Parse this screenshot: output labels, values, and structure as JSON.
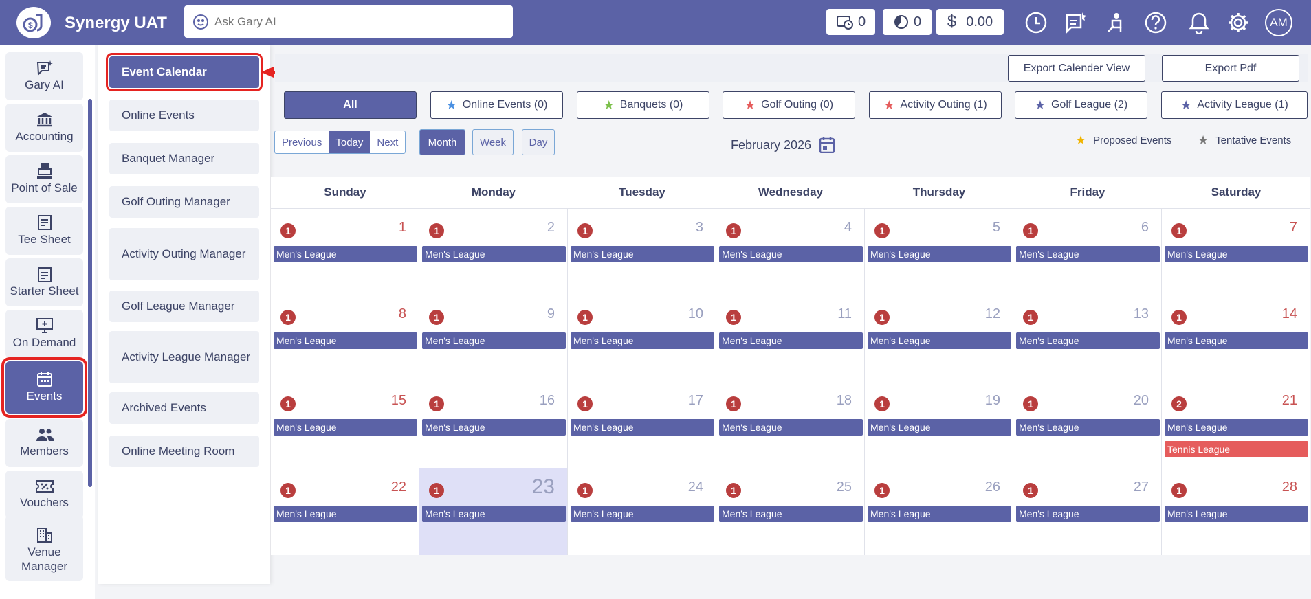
{
  "app": {
    "title": "Synergy UAT"
  },
  "search": {
    "placeholder": "Ask Gary AI"
  },
  "counters": {
    "first": "0",
    "second": "0",
    "balance": "0.00"
  },
  "user": {
    "initials": "AM"
  },
  "sidebar": {
    "items": [
      {
        "label": "Gary AI",
        "icon": "gary-ai-icon"
      },
      {
        "label": "Accounting",
        "icon": "bank-icon"
      },
      {
        "label": "Point of Sale",
        "icon": "register-icon"
      },
      {
        "label": "Tee Sheet",
        "icon": "document-icon"
      },
      {
        "label": "Starter Sheet",
        "icon": "clipboard-icon"
      },
      {
        "label": "On Demand",
        "icon": "monitor-icon"
      },
      {
        "label": "Events",
        "icon": "calendar-icon"
      },
      {
        "label": "Members",
        "icon": "people-icon"
      },
      {
        "label": "Vouchers",
        "icon": "ticket-icon"
      },
      {
        "label": "Venue Manager",
        "icon": "building-icon"
      }
    ]
  },
  "submenu": {
    "items": [
      "Event Calendar",
      "Online Events",
      "Banquet Manager",
      "Golf Outing Manager",
      "Activity Outing Manager",
      "Golf League Manager",
      "Activity League Manager",
      "Archived Events",
      "Online Meeting Room"
    ]
  },
  "toolbar": {
    "export_calendar": "Export Calender View",
    "export_pdf": "Export Pdf"
  },
  "filters": [
    {
      "label": "All",
      "star_color": ""
    },
    {
      "label": "Online Events (0)",
      "star_color": "#4a90e2"
    },
    {
      "label": "Banquets (0)",
      "star_color": "#7cc04b"
    },
    {
      "label": "Golf Outing (0)",
      "star_color": "#e55c5c"
    },
    {
      "label": "Activity Outing (1)",
      "star_color": "#e55c5c"
    },
    {
      "label": "Golf League (2)",
      "star_color": "#5b62a6"
    },
    {
      "label": "Activity League (1)",
      "star_color": "#5b62a6"
    }
  ],
  "nav": {
    "previous": "Previous",
    "today": "Today",
    "next": "Next"
  },
  "views": {
    "month": "Month",
    "week": "Week",
    "day": "Day"
  },
  "calendar": {
    "month_label": "February 2026",
    "weekdays": [
      "Sunday",
      "Monday",
      "Tuesday",
      "Wednesday",
      "Thursday",
      "Friday",
      "Saturday"
    ],
    "legend": {
      "proposed": "Proposed Events",
      "tentative": "Tentative Events",
      "proposed_color": "#f0b400",
      "tentative_color": "#777777"
    },
    "today": 23,
    "weeks": [
      [
        {
          "day": "1",
          "count": "1",
          "events": [
            "Men's League"
          ]
        },
        {
          "day": "2",
          "count": "1",
          "events": [
            "Men's League"
          ]
        },
        {
          "day": "3",
          "count": "1",
          "events": [
            "Men's League"
          ]
        },
        {
          "day": "4",
          "count": "1",
          "events": [
            "Men's League"
          ]
        },
        {
          "day": "5",
          "count": "1",
          "events": [
            "Men's League"
          ]
        },
        {
          "day": "6",
          "count": "1",
          "events": [
            "Men's League"
          ]
        },
        {
          "day": "7",
          "count": "1",
          "events": [
            "Men's League"
          ]
        }
      ],
      [
        {
          "day": "8",
          "count": "1",
          "events": [
            "Men's League"
          ]
        },
        {
          "day": "9",
          "count": "1",
          "events": [
            "Men's League"
          ]
        },
        {
          "day": "10",
          "count": "1",
          "events": [
            "Men's League"
          ]
        },
        {
          "day": "11",
          "count": "1",
          "events": [
            "Men's League"
          ]
        },
        {
          "day": "12",
          "count": "1",
          "events": [
            "Men's League"
          ]
        },
        {
          "day": "13",
          "count": "1",
          "events": [
            "Men's League"
          ]
        },
        {
          "day": "14",
          "count": "1",
          "events": [
            "Men's League"
          ]
        }
      ],
      [
        {
          "day": "15",
          "count": "1",
          "events": [
            "Men's League"
          ]
        },
        {
          "day": "16",
          "count": "1",
          "events": [
            "Men's League"
          ]
        },
        {
          "day": "17",
          "count": "1",
          "events": [
            "Men's League"
          ]
        },
        {
          "day": "18",
          "count": "1",
          "events": [
            "Men's League"
          ]
        },
        {
          "day": "19",
          "count": "1",
          "events": [
            "Men's League"
          ]
        },
        {
          "day": "20",
          "count": "1",
          "events": [
            "Men's League"
          ]
        },
        {
          "day": "21",
          "count": "2",
          "events": [
            "Men's League",
            "Tennis League"
          ]
        }
      ],
      [
        {
          "day": "22",
          "count": "1",
          "events": [
            "Men's League"
          ]
        },
        {
          "day": "23",
          "count": "1",
          "events": [
            "Men's League"
          ]
        },
        {
          "day": "24",
          "count": "1",
          "events": [
            "Men's League"
          ]
        },
        {
          "day": "25",
          "count": "1",
          "events": [
            "Men's League"
          ]
        },
        {
          "day": "26",
          "count": "1",
          "events": [
            "Men's League"
          ]
        },
        {
          "day": "27",
          "count": "1",
          "events": [
            "Men's League"
          ]
        },
        {
          "day": "28",
          "count": "1",
          "events": [
            "Men's League"
          ]
        }
      ]
    ]
  }
}
